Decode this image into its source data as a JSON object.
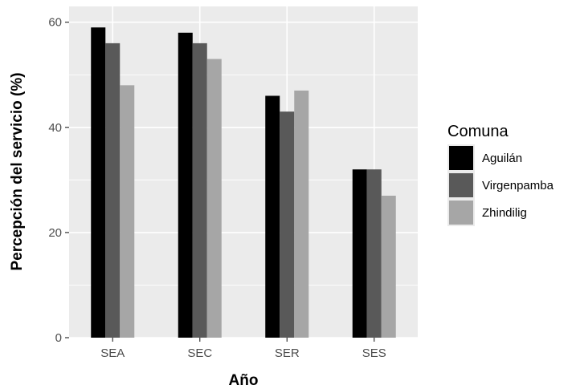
{
  "chart_data": {
    "type": "bar",
    "title": "",
    "xlabel": "Año",
    "ylabel": "Percepción del servicio (%)",
    "categories": [
      "SEA",
      "SEC",
      "SER",
      "SES"
    ],
    "series": [
      {
        "name": "Aguilán",
        "values": [
          59,
          58,
          46,
          32
        ],
        "color": "#000000"
      },
      {
        "name": "Virgenpamba",
        "values": [
          56,
          56,
          43,
          32
        ],
        "color": "#595959"
      },
      {
        "name": "Zhindilig",
        "values": [
          48,
          53,
          47,
          27
        ],
        "color": "#a6a6a6"
      }
    ],
    "ylim": [
      0,
      63
    ],
    "yticks": [
      0,
      20,
      40,
      60
    ],
    "grid": true,
    "panel_color": "#ebebeb",
    "legend": {
      "title": "Comuna",
      "position": "right"
    }
  }
}
